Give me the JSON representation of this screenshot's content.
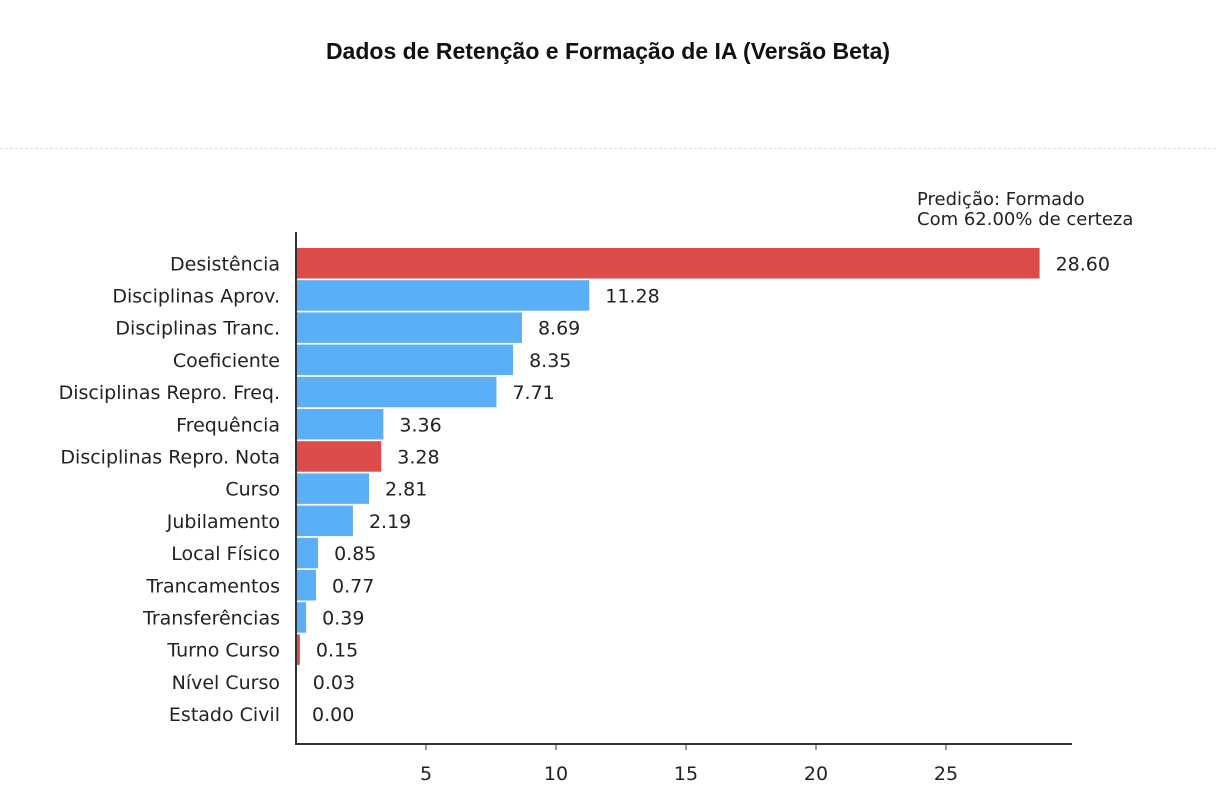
{
  "card": {
    "title": "Dados de Retenção e Formação de IA (Versão Beta)"
  },
  "chart_data": {
    "type": "bar",
    "orientation": "horizontal",
    "categories": [
      "Desistência",
      "Disciplinas Aprov.",
      "Disciplinas Tranc.",
      "Coeficiente",
      "Disciplinas Repro. Freq.",
      "Frequência",
      "Disciplinas Repro. Nota",
      "Curso",
      "Jubilamento",
      "Local Físico",
      "Trancamentos",
      "Transferências",
      "Turno Curso",
      "Nível Curso",
      "Estado Civil"
    ],
    "values": [
      28.6,
      11.28,
      8.69,
      8.35,
      7.71,
      3.36,
      3.28,
      2.81,
      2.19,
      0.85,
      0.77,
      0.39,
      0.15,
      0.03,
      0.0
    ],
    "value_labels": [
      "28.60",
      "11.28",
      "8.69",
      "8.35",
      "7.71",
      "3.36",
      "3.28",
      "2.81",
      "2.19",
      "0.85",
      "0.77",
      "0.39",
      "0.15",
      "0.03",
      "0.00"
    ],
    "bar_colors": [
      "#dc4c4b",
      "#5aaff6",
      "#5aaff6",
      "#5aaff6",
      "#5aaff6",
      "#5aaff6",
      "#dc4c4b",
      "#5aaff6",
      "#5aaff6",
      "#5aaff6",
      "#5aaff6",
      "#5aaff6",
      "#dc4c4b",
      "#5aaff6",
      "#5aaff6"
    ],
    "xticks": [
      5,
      10,
      15,
      20,
      25
    ],
    "xlim": [
      0,
      29.8
    ],
    "annotation": [
      "Predição: Formado",
      "Com 62.00% de certeza"
    ],
    "grid": false
  }
}
